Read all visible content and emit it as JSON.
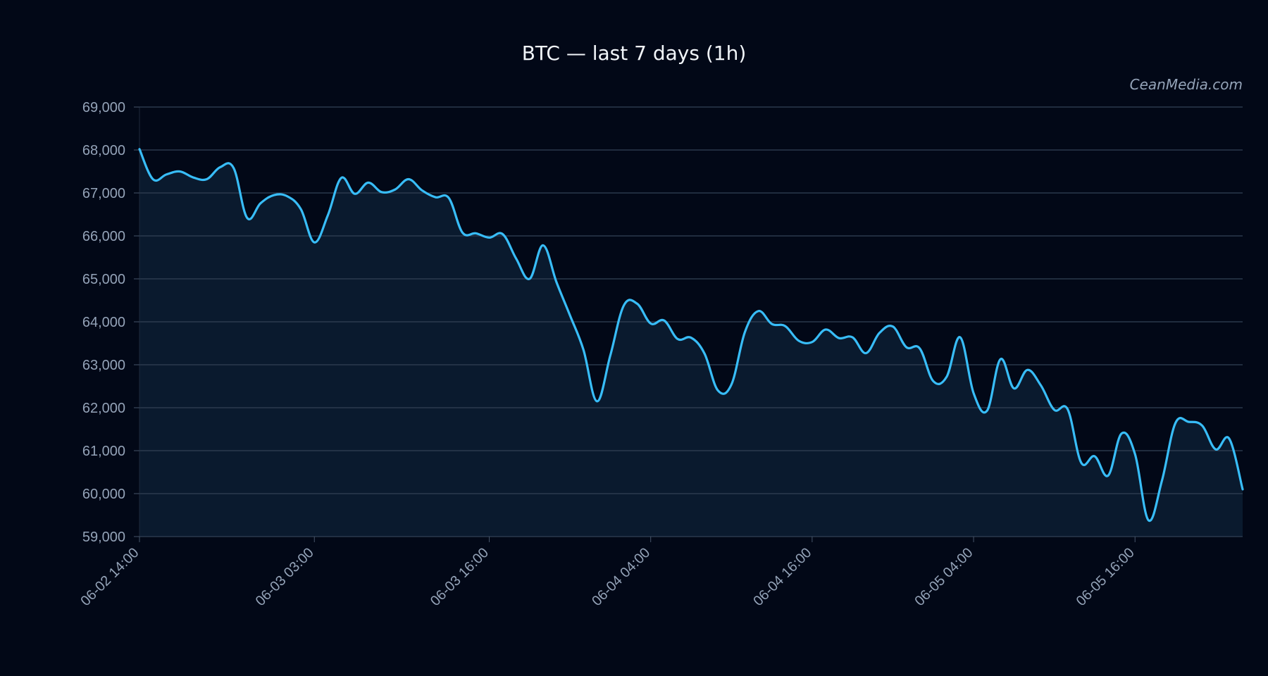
{
  "chart_data": {
    "type": "line",
    "title": "BTC — last 7 days (1h)",
    "watermark": "CeanMedia.com",
    "xlabel": "",
    "ylabel": "",
    "ylim": [
      59000,
      69000
    ],
    "yticks": [
      59000,
      60000,
      61000,
      62000,
      63000,
      64000,
      65000,
      66000,
      67000,
      68000,
      69000
    ],
    "ytick_labels": [
      "59,000",
      "60,000",
      "61,000",
      "62,000",
      "63,000",
      "64,000",
      "65,000",
      "66,000",
      "67,000",
      "68,000",
      "69,000"
    ],
    "x_start": "06-02 14:00",
    "x_end": "06-06 00:00",
    "xticks": [
      "06-02 14:00",
      "06-03 03:00",
      "06-03 16:00",
      "06-04 04:00",
      "06-04 16:00",
      "06-05 04:00",
      "06-05 16:00"
    ],
    "grid": true,
    "line_color": "#38bdf8",
    "fill_color": "#0a1a2e",
    "background": "#020817",
    "series": [
      {
        "points": [
          [
            "06-02 14:00",
            68020
          ],
          [
            "06-02 15:00",
            67320
          ],
          [
            "06-02 16:00",
            67430
          ],
          [
            "06-02 17:00",
            67500
          ],
          [
            "06-02 18:00",
            67360
          ],
          [
            "06-02 19:00",
            67320
          ],
          [
            "06-02 20:00",
            67600
          ],
          [
            "06-02 21:00",
            67580
          ],
          [
            "06-02 22:00",
            66420
          ],
          [
            "06-02 23:00",
            66760
          ],
          [
            "06-03 00:00",
            66950
          ],
          [
            "06-03 01:00",
            66920
          ],
          [
            "06-03 02:00",
            66620
          ],
          [
            "06-03 03:00",
            65850
          ],
          [
            "06-03 04:00",
            66480
          ],
          [
            "06-03 05:00",
            67350
          ],
          [
            "06-03 06:00",
            66980
          ],
          [
            "06-03 07:00",
            67240
          ],
          [
            "06-03 08:00",
            67020
          ],
          [
            "06-03 09:00",
            67080
          ],
          [
            "06-03 10:00",
            67320
          ],
          [
            "06-03 11:00",
            67060
          ],
          [
            "06-03 12:00",
            66900
          ],
          [
            "06-03 13:00",
            66880
          ],
          [
            "06-03 14:00",
            66080
          ],
          [
            "06-03 15:00",
            66060
          ],
          [
            "06-03 16:00",
            65960
          ],
          [
            "06-03 17:00",
            66040
          ],
          [
            "06-03 18:00",
            65470
          ],
          [
            "06-03 19:00",
            65000
          ],
          [
            "06-03 20:00",
            65780
          ],
          [
            "06-03 21:00",
            64920
          ],
          [
            "06-03 22:00",
            64150
          ],
          [
            "06-03 23:00",
            63350
          ],
          [
            "06-04 00:00",
            62150
          ],
          [
            "06-04 01:00",
            63220
          ],
          [
            "06-04 02:00",
            64380
          ],
          [
            "06-04 03:00",
            64420
          ],
          [
            "06-04 04:00",
            63960
          ],
          [
            "06-04 05:00",
            64030
          ],
          [
            "06-04 06:00",
            63600
          ],
          [
            "06-04 07:00",
            63630
          ],
          [
            "06-04 08:00",
            63260
          ],
          [
            "06-04 09:00",
            62400
          ],
          [
            "06-04 10:00",
            62540
          ],
          [
            "06-04 11:00",
            63760
          ],
          [
            "06-04 12:00",
            64250
          ],
          [
            "06-04 13:00",
            63950
          ],
          [
            "06-04 14:00",
            63900
          ],
          [
            "06-04 15:00",
            63560
          ],
          [
            "06-04 16:00",
            63530
          ],
          [
            "06-04 17:00",
            63820
          ],
          [
            "06-04 18:00",
            63620
          ],
          [
            "06-04 19:00",
            63640
          ],
          [
            "06-04 20:00",
            63270
          ],
          [
            "06-04 21:00",
            63740
          ],
          [
            "06-04 22:00",
            63890
          ],
          [
            "06-04 23:00",
            63410
          ],
          [
            "06-05 00:00",
            63380
          ],
          [
            "06-05 01:00",
            62620
          ],
          [
            "06-05 02:00",
            62720
          ],
          [
            "06-05 03:00",
            63640
          ],
          [
            "06-05 04:00",
            62340
          ],
          [
            "06-05 05:00",
            61930
          ],
          [
            "06-05 06:00",
            63130
          ],
          [
            "06-05 07:00",
            62450
          ],
          [
            "06-05 08:00",
            62880
          ],
          [
            "06-05 09:00",
            62520
          ],
          [
            "06-05 10:00",
            61950
          ],
          [
            "06-05 11:00",
            61960
          ],
          [
            "06-05 12:00",
            60720
          ],
          [
            "06-05 13:00",
            60870
          ],
          [
            "06-05 14:00",
            60420
          ],
          [
            "06-05 15:00",
            61400
          ],
          [
            "06-05 16:00",
            60920
          ],
          [
            "06-05 17:00",
            59380
          ],
          [
            "06-05 18:00",
            60300
          ],
          [
            "06-05 19:00",
            61640
          ],
          [
            "06-05 20:00",
            61670
          ],
          [
            "06-05 21:00",
            61580
          ],
          [
            "06-05 22:00",
            61030
          ],
          [
            "06-05 23:00",
            61280
          ],
          [
            "06-06 00:00",
            60100
          ]
        ]
      }
    ]
  }
}
